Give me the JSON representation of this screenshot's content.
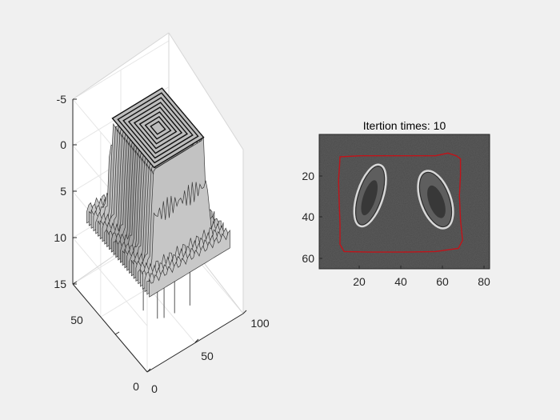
{
  "window": {
    "background": "#f0f0f0"
  },
  "chart_data": [
    {
      "type": "surface3d",
      "title": "",
      "xlabel": "",
      "ylabel": "",
      "zlabel": "",
      "z_direction": "reversed",
      "xlim": [
        0,
        100
      ],
      "ylim": [
        0,
        80
      ],
      "zlim": [
        -5,
        15
      ],
      "x_ticks": [
        "0",
        "50",
        "100"
      ],
      "y_ticks": [
        "0",
        "50"
      ],
      "z_ticks": [
        "-5",
        "0",
        "5",
        "10",
        "15"
      ],
      "grid": true,
      "colormap": "gray",
      "description_levels": {
        "plateau_top_z": -3.5,
        "base_z": 6.5,
        "spike_bottom_z": 13.5
      }
    },
    {
      "type": "image",
      "title": "Itertion times: 10",
      "xlim": [
        0,
        82
      ],
      "ylim": [
        0,
        66
      ],
      "x_ticks": [
        "20",
        "40",
        "60",
        "80"
      ],
      "y_ticks": [
        "20",
        "40",
        "60"
      ],
      "y_direction": "reversed",
      "contour_color": "#c0141a",
      "contour": [
        [
          10,
          11
        ],
        [
          20,
          10.5
        ],
        [
          40,
          10.5
        ],
        [
          56,
          10.5
        ],
        [
          62,
          9.2
        ],
        [
          66,
          10.5
        ],
        [
          68,
          12
        ],
        [
          68,
          20
        ],
        [
          67.5,
          30
        ],
        [
          68,
          42
        ],
        [
          69,
          52
        ],
        [
          67,
          56
        ],
        [
          56,
          57.5
        ],
        [
          40,
          57.8
        ],
        [
          24,
          57.8
        ],
        [
          12,
          57.5
        ],
        [
          10,
          54
        ],
        [
          10,
          44
        ],
        [
          9.5,
          30
        ],
        [
          9.3,
          22
        ],
        [
          9.8,
          15
        ],
        [
          10,
          11
        ]
      ],
      "cells": [
        {
          "cx": 24.5,
          "cy": 30,
          "rx": 5.5,
          "ry": 15,
          "angle": 18
        },
        {
          "cx": 56,
          "cy": 32,
          "rx": 6.5,
          "ry": 14,
          "angle": -20
        }
      ]
    }
  ]
}
